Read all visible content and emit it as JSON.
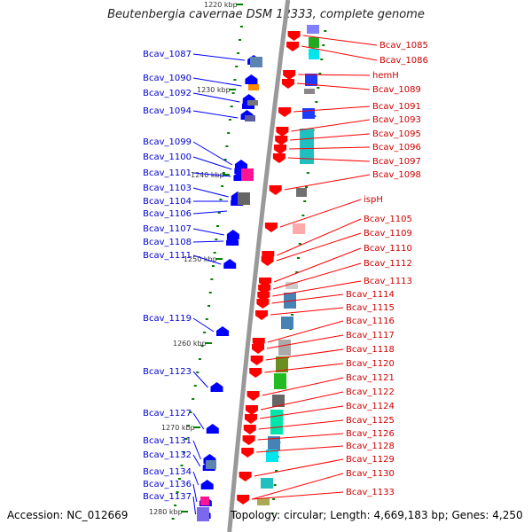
{
  "title": "Beutenbergia cavernae DSM 12333, complete genome",
  "footer": {
    "accession": "Accession: NC_012669",
    "topology": "Topology: circular; Length: 4,669,183 bp; Genes: 4,250"
  },
  "ticks": [
    {
      "label": "1220 kbp",
      "kbp": 1220
    },
    {
      "label": "1230 kbp",
      "kbp": 1230
    },
    {
      "label": "1240 kbp",
      "kbp": 1240
    },
    {
      "label": "1250 kbp",
      "kbp": 1250
    },
    {
      "label": "1260 kbp",
      "kbp": 1260
    },
    {
      "label": "1270 kbp",
      "kbp": 1270
    },
    {
      "label": "1280 kbp",
      "kbp": 1280
    }
  ],
  "left_labels": [
    "Bcav_1087",
    "Bcav_1090",
    "Bcav_1092",
    "Bcav_1094",
    "Bcav_1099",
    "Bcav_1100",
    "Bcav_1101",
    "Bcav_1103",
    "Bcav_1104",
    "Bcav_1106",
    "Bcav_1107",
    "Bcav_1108",
    "Bcav_1111",
    "Bcav_1119",
    "Bcav_1123",
    "Bcav_1127",
    "Bcav_1131",
    "Bcav_1132",
    "Bcav_1134",
    "Bcav_1136",
    "Bcav_1137"
  ],
  "right_labels": [
    "Bcav_1085",
    "Bcav_1086",
    "hemH",
    "Bcav_1089",
    "Bcav_1091",
    "Bcav_1093",
    "Bcav_1095",
    "Bcav_1096",
    "Bcav_1097",
    "Bcav_1098",
    "ispH",
    "Bcav_1105",
    "Bcav_1109",
    "Bcav_1110",
    "Bcav_1112",
    "Bcav_1113",
    "Bcav_1114",
    "Bcav_1115",
    "Bcav_1116",
    "Bcav_1117",
    "Bcav_1118",
    "Bcav_1120",
    "Bcav_1121",
    "Bcav_1122",
    "Bcav_1124",
    "Bcav_1125",
    "Bcav_1126",
    "Bcav_1128",
    "Bcav_1129",
    "Bcav_1130",
    "Bcav_1133"
  ],
  "colors": {
    "backbone": "#999999",
    "forward_gene": "#ff0000",
    "reverse_gene": "#0000ff",
    "left_label": "#0000cc",
    "right_label": "#cc0000",
    "tick": "#008000"
  }
}
